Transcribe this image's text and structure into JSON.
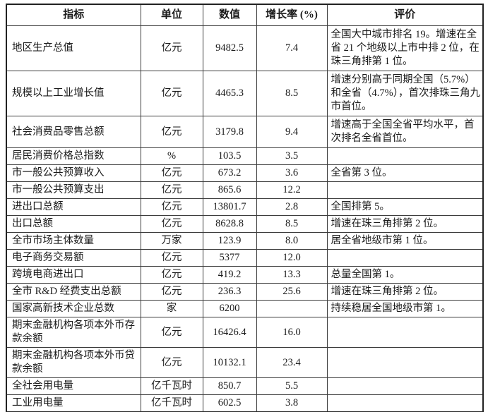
{
  "table": {
    "headers": {
      "indicator": "指标",
      "unit": "单位",
      "value": "数值",
      "growth": "增长率 (%)",
      "evaluation": "评价"
    },
    "rows": [
      {
        "indicator": "地区生产总值",
        "unit": "亿元",
        "value": "9482.5",
        "growth": "7.4",
        "evaluation": "全国大中城市排名 19。增速在全省 21 个地级以上市中排 2 位，在珠三角排第 1 位。"
      },
      {
        "indicator": "规模以上工业增长值",
        "unit": "亿元",
        "value": "4465.3",
        "growth": "8.5",
        "evaluation": "增速分别高于同期全国（5.7%）和全省（4.7%），首次排珠三角九市首位。"
      },
      {
        "indicator": "社会消费品零售总额",
        "unit": "亿元",
        "value": "3179.8",
        "growth": "9.4",
        "evaluation": "增速高于全国全省平均水平，首次排名全省首位。"
      },
      {
        "indicator": "居民消费价格总指数",
        "unit": "%",
        "value": "103.5",
        "growth": "3.5",
        "evaluation": ""
      },
      {
        "indicator": "市一般公共预算收入",
        "unit": "亿元",
        "value": "673.2",
        "growth": "3.6",
        "evaluation": "全省第 3 位。"
      },
      {
        "indicator": "市一般公共预算支出",
        "unit": "亿元",
        "value": "865.6",
        "growth": "12.2",
        "evaluation": ""
      },
      {
        "indicator": "进出口总额",
        "unit": "亿元",
        "value": "13801.7",
        "growth": "2.8",
        "evaluation": "全国排第 5。"
      },
      {
        "indicator": "出口总额",
        "unit": "亿元",
        "value": "8628.8",
        "growth": "8.5",
        "evaluation": "增速在珠三角排第 2 位。"
      },
      {
        "indicator": "全市市场主体数量",
        "unit": "万家",
        "value": "123.9",
        "growth": "8.0",
        "evaluation": "居全省地级市第 1 位。"
      },
      {
        "indicator": "电子商务交易额",
        "unit": "亿元",
        "value": "5377",
        "growth": "12.0",
        "evaluation": ""
      },
      {
        "indicator": "跨境电商进出口",
        "unit": "亿元",
        "value": "419.2",
        "growth": "13.3",
        "evaluation": "总量全国第 1。"
      },
      {
        "indicator": "全市 R&D 经费支出总额",
        "unit": "亿元",
        "value": "236.3",
        "growth": "25.6",
        "evaluation": "增速在珠三角排第 2 位。"
      },
      {
        "indicator": "国家高新技术企业总数",
        "unit": "家",
        "value": "6200",
        "growth": "",
        "evaluation": "持续稳居全国地级市第 1。"
      },
      {
        "indicator": "期末金融机构各项本外币存款余额",
        "unit": "亿元",
        "value": "16426.4",
        "growth": "16.0",
        "evaluation": ""
      },
      {
        "indicator": "期末金融机构各项本外币贷款余额",
        "unit": "亿元",
        "value": "10132.1",
        "growth": "23.4",
        "evaluation": ""
      },
      {
        "indicator": "全社会用电量",
        "unit": "亿千瓦时",
        "value": "850.7",
        "growth": "5.5",
        "evaluation": ""
      },
      {
        "indicator": "工业用电量",
        "unit": "亿千瓦时",
        "value": "602.5",
        "growth": "3.8",
        "evaluation": ""
      }
    ]
  }
}
